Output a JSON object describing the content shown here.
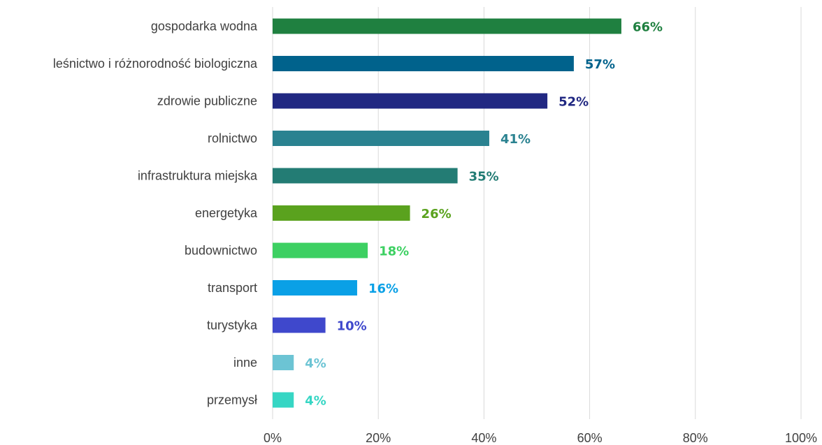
{
  "chart_data": {
    "type": "bar",
    "orientation": "horizontal",
    "categories": [
      "gospodarka wodna",
      "leśnictwo i różnorodność biologiczna",
      "zdrowie publiczne",
      "rolnictwo",
      "infrastruktura miejska",
      "energetyka",
      "budownictwo",
      "transport",
      "turystyka",
      "inne",
      "przemysł"
    ],
    "values": [
      66,
      57,
      52,
      41,
      35,
      26,
      18,
      16,
      10,
      4,
      4
    ],
    "value_labels": [
      "66%",
      "57%",
      "52%",
      "41%",
      "35%",
      "26%",
      "18%",
      "16%",
      "10%",
      "4%",
      "4%"
    ],
    "colors": [
      "#1f8040",
      "#00628c",
      "#212882",
      "#2a8290",
      "#237c74",
      "#5aa21e",
      "#3dd062",
      "#0aa0e6",
      "#3f48cc",
      "#6cc4d4",
      "#36d6c4"
    ],
    "xlim": [
      0,
      100
    ],
    "x_ticks": [
      0,
      20,
      40,
      60,
      80,
      100
    ],
    "x_tick_labels": [
      "0%",
      "20%",
      "40%",
      "60%",
      "80%",
      "100%"
    ],
    "grid": true,
    "title": "",
    "xlabel": "",
    "ylabel": ""
  }
}
